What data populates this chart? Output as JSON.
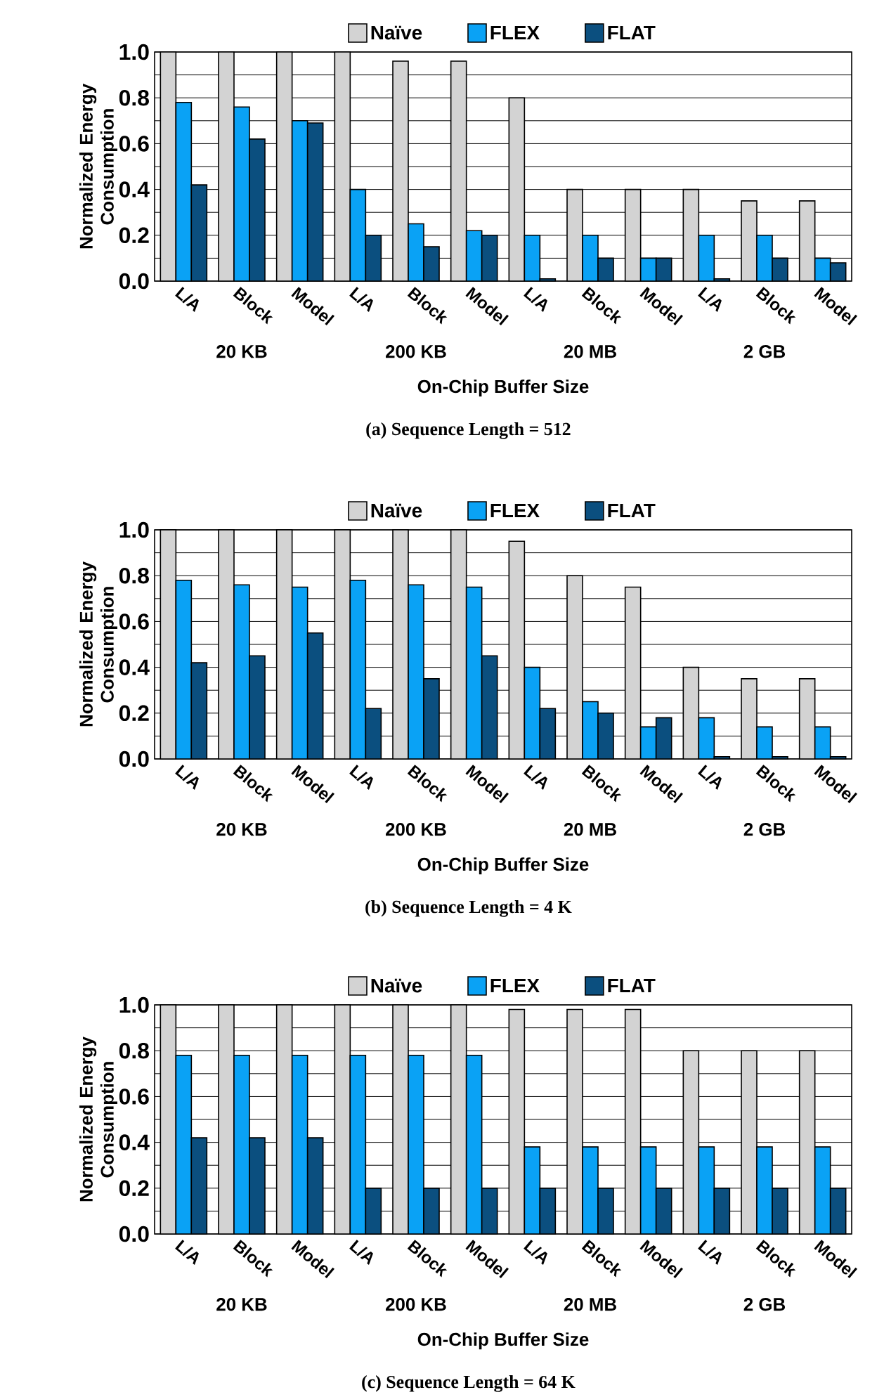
{
  "chart_data": [
    {
      "type": "bar",
      "title": "(a) Sequence Length = 512",
      "xlabel": "On-Chip Buffer Size",
      "ylabel": "Normalized Energy Consumption",
      "categories": [
        "L/A",
        "Block",
        "Model",
        "L/A",
        "Block",
        "Model",
        "L/A",
        "Block",
        "Model",
        "L/A",
        "Block",
        "Model"
      ],
      "series": [
        {
          "name": "Naïve",
          "color": "#d3d3d3",
          "values": [
            1,
            1,
            1,
            1,
            0.96,
            0.96,
            0.8,
            0.4,
            0.4,
            0.4,
            0.35,
            0.35
          ]
        },
        {
          "name": "FLEX",
          "color": "#0aa2f5",
          "values": [
            0.78,
            0.76,
            0.7,
            0.4,
            0.25,
            0.22,
            0.2,
            0.2,
            0.1,
            0.2,
            0.2,
            0.1
          ]
        },
        {
          "name": "FLAT",
          "color": "#0b4f7f",
          "values": [
            0.42,
            0.62,
            0.69,
            0.2,
            0.15,
            0.2,
            0.01,
            0.1,
            0.1,
            0.01,
            0.1,
            0.08
          ]
        }
      ],
      "ylim": [
        0,
        1
      ],
      "yticks": [
        {
          "value": 0,
          "label": "0.0"
        },
        {
          "value": 0.1,
          "label": null
        },
        {
          "value": 0.2,
          "label": "0.2"
        },
        {
          "value": 0.3,
          "label": null
        },
        {
          "value": 0.4,
          "label": "0.4"
        },
        {
          "value": 0.5,
          "label": null
        },
        {
          "value": 0.6,
          "label": "0.6"
        },
        {
          "value": 0.7,
          "label": null
        },
        {
          "value": 0.8,
          "label": "0.8"
        },
        {
          "value": 0.9,
          "label": null
        },
        {
          "value": 1,
          "label": "1.0"
        }
      ],
      "grid": "y",
      "legend": "top",
      "annotations": [
        "20 KB",
        "200 KB",
        "20 MB",
        "2 GB"
      ]
    },
    {
      "type": "bar",
      "title": "(b) Sequence Length = 4 K",
      "xlabel": "On-Chip Buffer Size",
      "ylabel": "Normalized Energy Consumption",
      "categories": [
        "L/A",
        "Block",
        "Model",
        "L/A",
        "Block",
        "Model",
        "L/A",
        "Block",
        "Model",
        "L/A",
        "Block",
        "Model"
      ],
      "series": [
        {
          "name": "Naïve",
          "color": "#d3d3d3",
          "values": [
            1,
            1,
            1,
            1,
            1,
            1,
            0.95,
            0.8,
            0.75,
            0.4,
            0.35,
            0.35
          ]
        },
        {
          "name": "FLEX",
          "color": "#0aa2f5",
          "values": [
            0.78,
            0.76,
            0.75,
            0.78,
            0.76,
            0.75,
            0.4,
            0.25,
            0.14,
            0.18,
            0.14,
            0.14
          ]
        },
        {
          "name": "FLAT",
          "color": "#0b4f7f",
          "values": [
            0.42,
            0.45,
            0.55,
            0.22,
            0.35,
            0.45,
            0.22,
            0.2,
            0.18,
            0.01,
            0.01,
            0.01
          ]
        }
      ],
      "ylim": [
        0,
        1
      ],
      "yticks": [
        {
          "value": 0,
          "label": "0.0"
        },
        {
          "value": 0.1,
          "label": null
        },
        {
          "value": 0.2,
          "label": "0.2"
        },
        {
          "value": 0.3,
          "label": null
        },
        {
          "value": 0.4,
          "label": "0.4"
        },
        {
          "value": 0.5,
          "label": null
        },
        {
          "value": 0.6,
          "label": "0.6"
        },
        {
          "value": 0.7,
          "label": null
        },
        {
          "value": 0.8,
          "label": "0.8"
        },
        {
          "value": 0.9,
          "label": null
        },
        {
          "value": 1,
          "label": "1.0"
        }
      ],
      "grid": "y",
      "legend": "top",
      "annotations": [
        "20 KB",
        "200 KB",
        "20 MB",
        "2 GB"
      ]
    },
    {
      "type": "bar",
      "title": "(c) Sequence Length = 64 K",
      "xlabel": "On-Chip Buffer Size",
      "ylabel": "Normalized Energy Consumption",
      "categories": [
        "L/A",
        "Block",
        "Model",
        "L/A",
        "Block",
        "Model",
        "L/A",
        "Block",
        "Model",
        "L/A",
        "Block",
        "Model"
      ],
      "series": [
        {
          "name": "Naïve",
          "color": "#d3d3d3",
          "values": [
            1,
            1,
            1,
            1,
            1,
            1,
            0.98,
            0.98,
            0.98,
            0.8,
            0.8,
            0.8
          ]
        },
        {
          "name": "FLEX",
          "color": "#0aa2f5",
          "values": [
            0.78,
            0.78,
            0.78,
            0.78,
            0.78,
            0.78,
            0.38,
            0.38,
            0.38,
            0.38,
            0.38,
            0.38
          ]
        },
        {
          "name": "FLAT",
          "color": "#0b4f7f",
          "values": [
            0.42,
            0.42,
            0.42,
            0.2,
            0.2,
            0.2,
            0.2,
            0.2,
            0.2,
            0.2,
            0.2,
            0.2
          ]
        }
      ],
      "ylim": [
        0,
        1
      ],
      "yticks": [
        {
          "value": 0,
          "label": "0.0"
        },
        {
          "value": 0.1,
          "label": null
        },
        {
          "value": 0.2,
          "label": "0.2"
        },
        {
          "value": 0.3,
          "label": null
        },
        {
          "value": 0.4,
          "label": "0.4"
        },
        {
          "value": 0.5,
          "label": null
        },
        {
          "value": 0.6,
          "label": "0.6"
        },
        {
          "value": 0.7,
          "label": null
        },
        {
          "value": 0.8,
          "label": "0.8"
        },
        {
          "value": 0.9,
          "label": null
        },
        {
          "value": 1,
          "label": "1.0"
        }
      ],
      "grid": "y",
      "legend": "top",
      "annotations": [
        "20 KB",
        "200 KB",
        "20 MB",
        "2 GB"
      ]
    }
  ]
}
